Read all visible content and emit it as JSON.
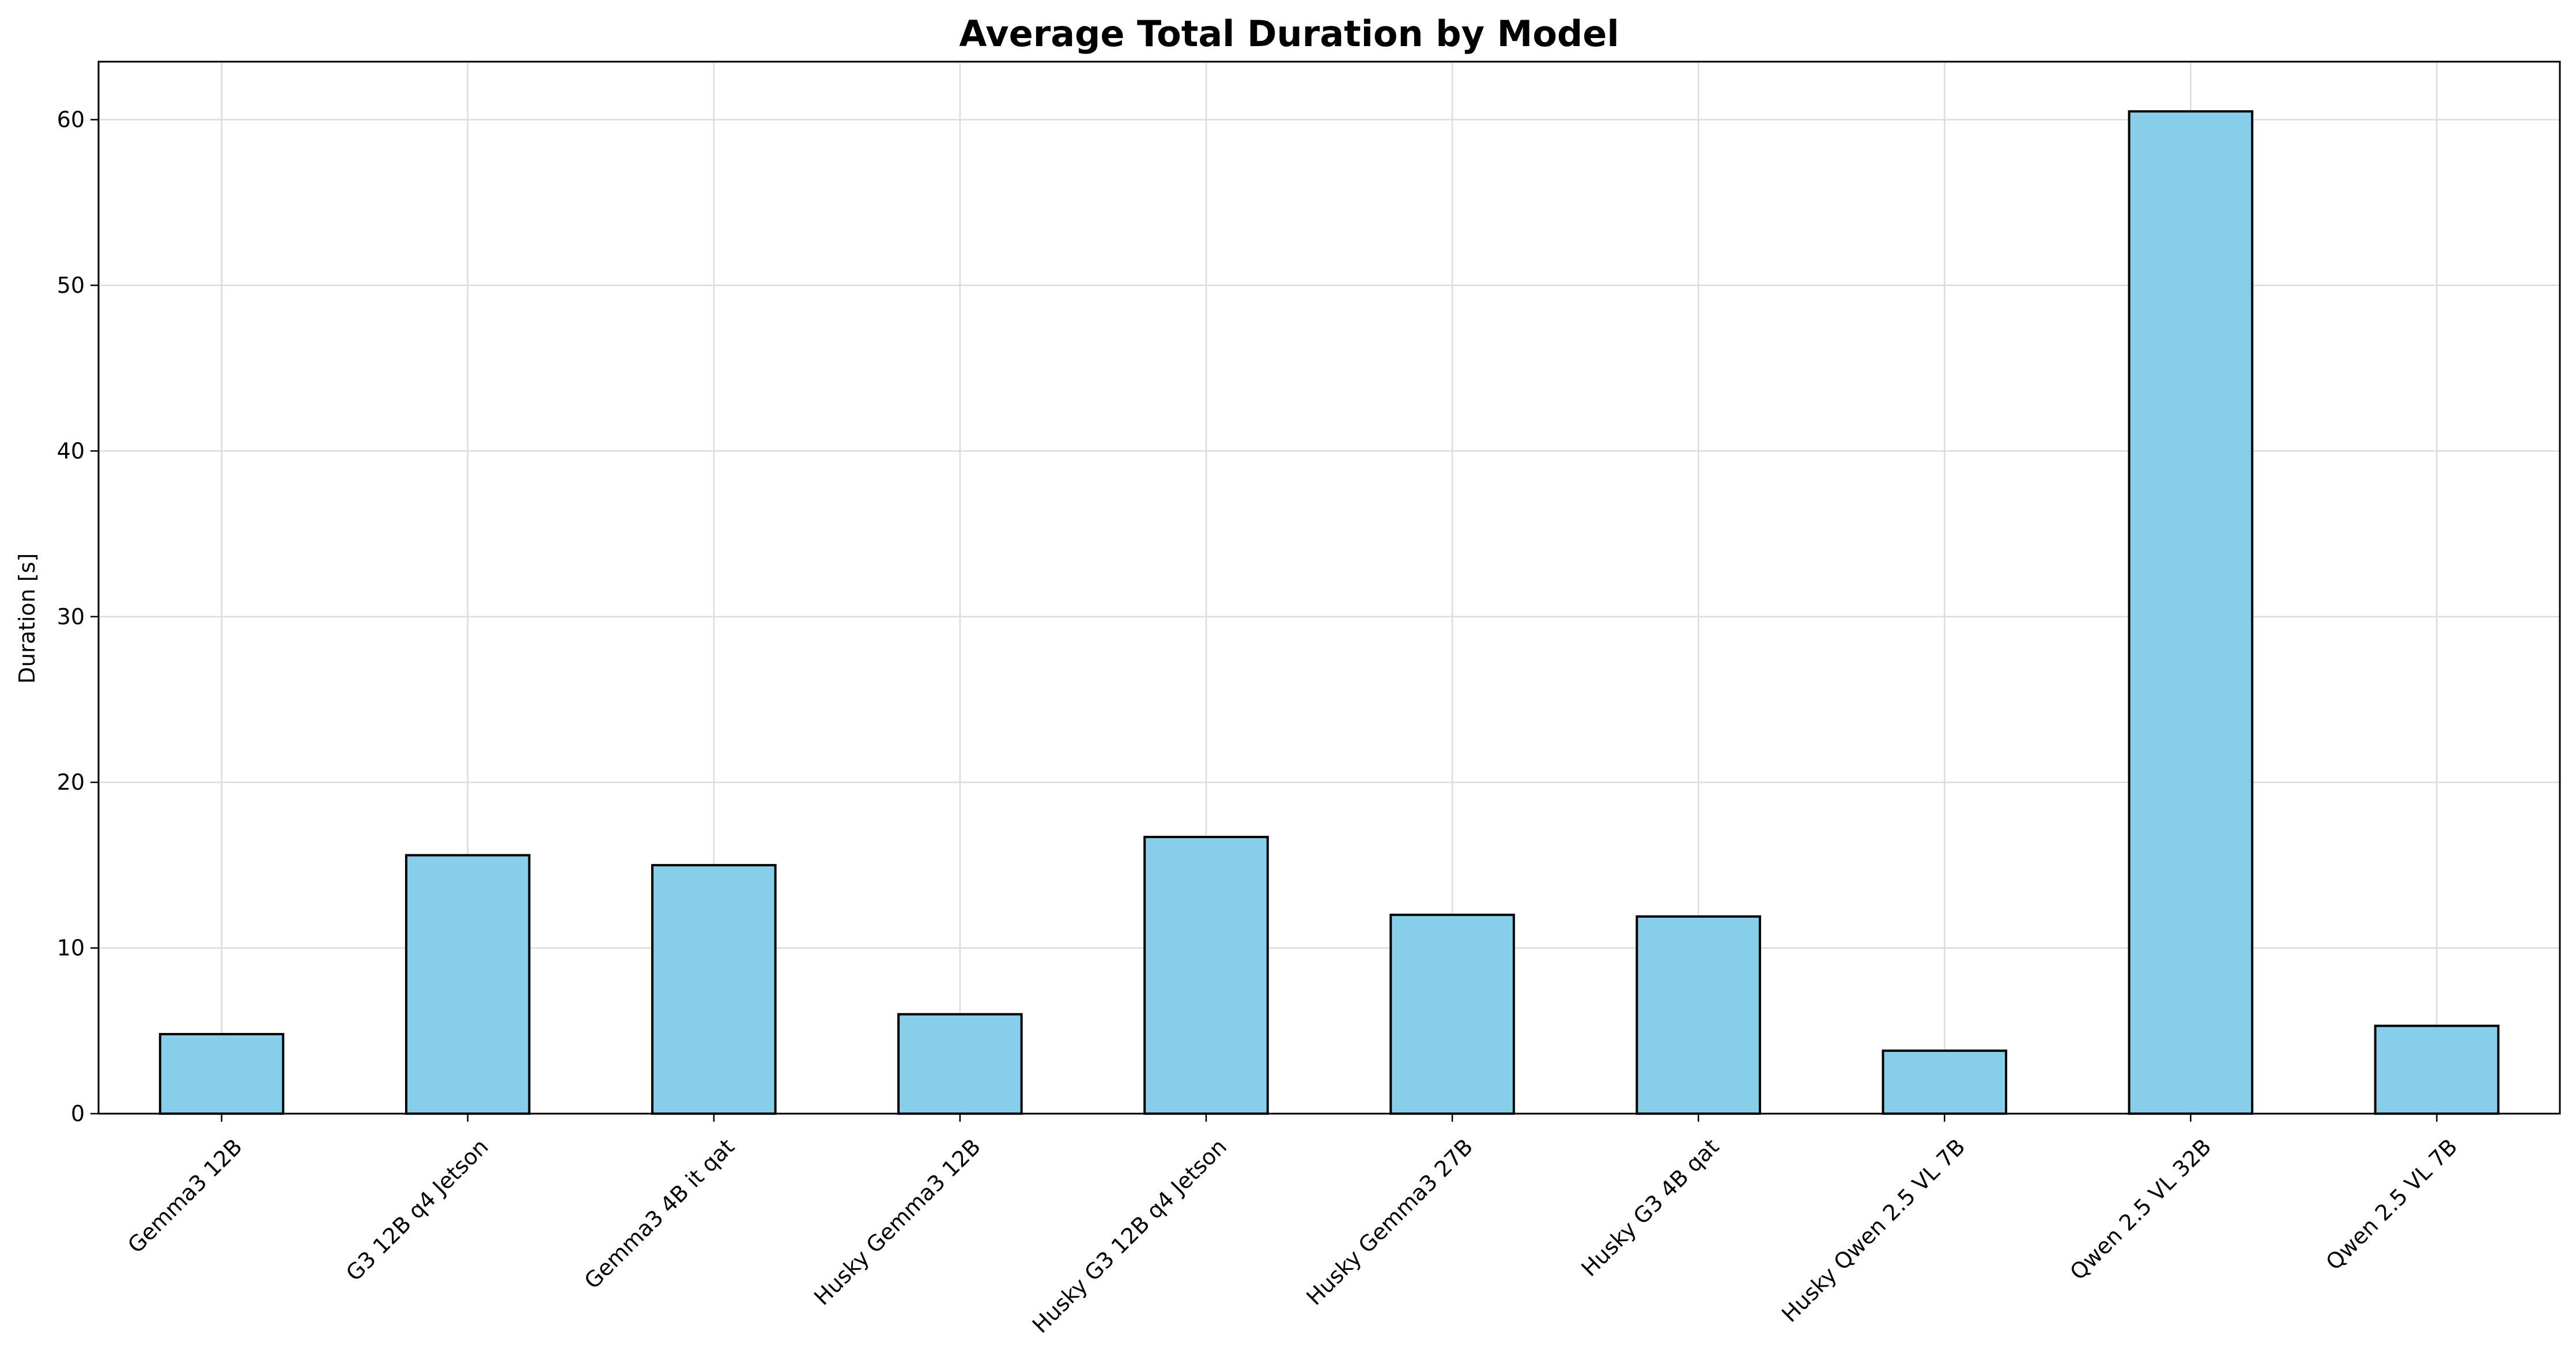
{
  "chart_data": {
    "type": "bar",
    "title": "Average Total Duration by Model",
    "xlabel": "",
    "ylabel": "Duration [s]",
    "categories": [
      "Gemma3 12B",
      "G3 12B q4 Jetson",
      "Gemma3 4B it qat",
      "Husky Gemma3 12B",
      "Husky G3 12B q4 Jetson",
      "Husky Gemma3 27B",
      "Husky G3 4B qat",
      "Husky Qwen 2.5 VL 7B",
      "Qwen 2.5 VL 32B",
      "Qwen 2.5 VL 7B"
    ],
    "values": [
      4.8,
      15.6,
      15.0,
      6.0,
      16.7,
      12.0,
      11.9,
      3.8,
      60.5,
      5.3
    ],
    "ylim": [
      0,
      63.5
    ],
    "yticks": [
      0,
      10,
      20,
      30,
      40,
      50,
      60
    ],
    "grid": true,
    "legend": "none",
    "colors": {
      "bar_fill": "#87ceeb",
      "bar_edge": "#000000",
      "grid": "#dcdcdc"
    }
  }
}
